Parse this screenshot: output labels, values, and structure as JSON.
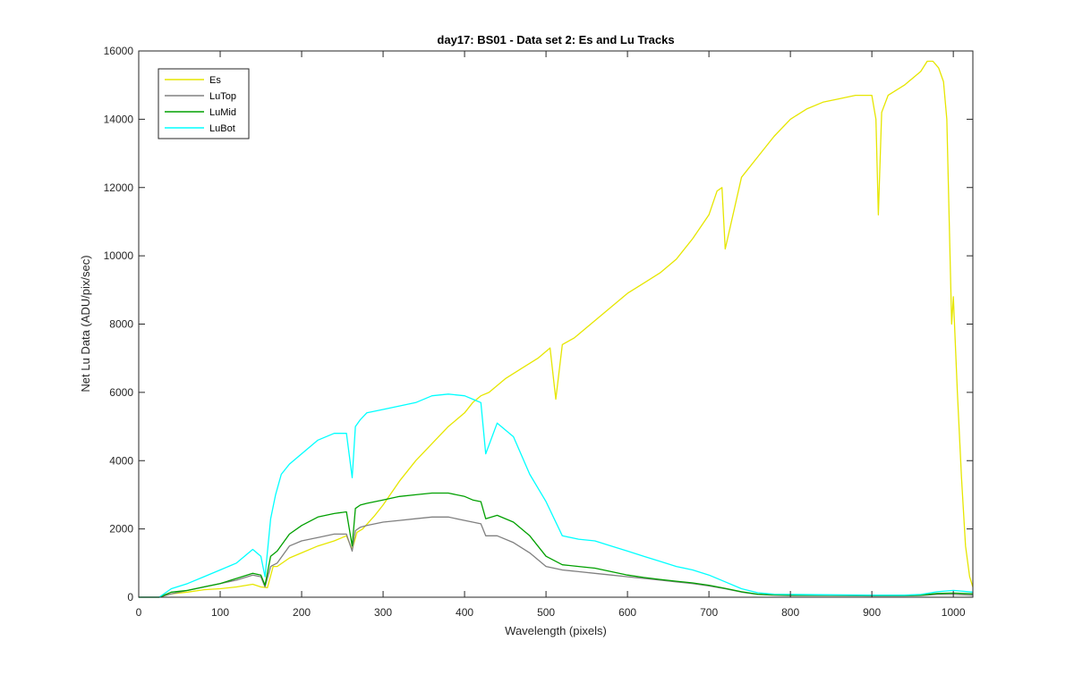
{
  "chart_data": {
    "type": "line",
    "title": "day17: BS01 - Data set 2: Es and Lu Tracks",
    "xlabel": "Wavelength (pixels)",
    "ylabel": "Net Lu Data (ADU/pix/sec)",
    "xlim": [
      0,
      1024
    ],
    "ylim": [
      0,
      16000
    ],
    "x_ticks": [
      0,
      100,
      200,
      300,
      400,
      500,
      600,
      700,
      800,
      900,
      1000
    ],
    "y_ticks": [
      0,
      2000,
      4000,
      6000,
      8000,
      10000,
      12000,
      14000,
      16000
    ],
    "grid": false,
    "legend_position": "top-left",
    "series": [
      {
        "name": "Es",
        "color": "#e6e600",
        "x": [
          0,
          25,
          40,
          60,
          80,
          100,
          120,
          140,
          150,
          158,
          165,
          170,
          185,
          200,
          220,
          240,
          255,
          262,
          268,
          275,
          290,
          300,
          320,
          340,
          360,
          380,
          400,
          410,
          420,
          430,
          450,
          470,
          490,
          505,
          512,
          520,
          535,
          550,
          570,
          590,
          600,
          620,
          640,
          660,
          680,
          700,
          710,
          716,
          720,
          740,
          760,
          780,
          800,
          820,
          840,
          860,
          880,
          900,
          905,
          908,
          912,
          920,
          940,
          960,
          968,
          975,
          982,
          988,
          992,
          995,
          998,
          1000,
          1005,
          1010,
          1015,
          1020,
          1024
        ],
        "y": [
          0,
          0,
          100,
          150,
          220,
          250,
          300,
          380,
          300,
          280,
          900,
          900,
          1150,
          1300,
          1500,
          1650,
          1800,
          1400,
          1900,
          2000,
          2400,
          2700,
          3400,
          4000,
          4500,
          5000,
          5400,
          5700,
          5900,
          6000,
          6400,
          6700,
          7000,
          7300,
          5800,
          7400,
          7600,
          7900,
          8300,
          8700,
          8900,
          9200,
          9500,
          9900,
          10500,
          11200,
          11900,
          12000,
          10200,
          12300,
          12900,
          13500,
          14000,
          14300,
          14500,
          14600,
          14700,
          14700,
          14000,
          11200,
          14200,
          14700,
          15000,
          15400,
          15700,
          15700,
          15500,
          15100,
          14000,
          11000,
          8000,
          8800,
          6000,
          3500,
          1500,
          600,
          300
        ]
      },
      {
        "name": "LuTop",
        "color": "#808080",
        "x": [
          0,
          25,
          40,
          60,
          80,
          100,
          120,
          140,
          150,
          155,
          162,
          170,
          185,
          200,
          220,
          240,
          255,
          262,
          266,
          272,
          280,
          300,
          320,
          340,
          360,
          380,
          400,
          410,
          420,
          426,
          440,
          460,
          480,
          500,
          520,
          540,
          560,
          580,
          600,
          620,
          640,
          660,
          680,
          700,
          720,
          740,
          760,
          780,
          800,
          850,
          900,
          940,
          960,
          980,
          1000,
          1024
        ],
        "y": [
          0,
          0,
          100,
          200,
          300,
          400,
          500,
          650,
          600,
          300,
          900,
          1000,
          1500,
          1650,
          1750,
          1850,
          1850,
          1350,
          1950,
          2050,
          2100,
          2200,
          2250,
          2300,
          2350,
          2350,
          2250,
          2200,
          2150,
          1800,
          1800,
          1600,
          1300,
          900,
          800,
          750,
          700,
          650,
          600,
          550,
          500,
          450,
          400,
          330,
          250,
          150,
          80,
          60,
          50,
          50,
          40,
          40,
          50,
          80,
          80,
          60
        ]
      },
      {
        "name": "LuMid",
        "color": "#00a000",
        "x": [
          0,
          25,
          40,
          60,
          80,
          100,
          120,
          140,
          150,
          155,
          162,
          170,
          185,
          200,
          220,
          240,
          255,
          262,
          266,
          272,
          280,
          300,
          320,
          340,
          360,
          380,
          400,
          410,
          420,
          426,
          440,
          460,
          480,
          500,
          520,
          540,
          560,
          580,
          600,
          620,
          640,
          660,
          680,
          700,
          720,
          740,
          760,
          780,
          800,
          850,
          900,
          940,
          960,
          980,
          1000,
          1024
        ],
        "y": [
          0,
          0,
          150,
          200,
          300,
          400,
          550,
          700,
          650,
          350,
          1200,
          1350,
          1850,
          2100,
          2350,
          2450,
          2500,
          1500,
          2600,
          2700,
          2750,
          2850,
          2950,
          3000,
          3050,
          3050,
          2950,
          2850,
          2800,
          2300,
          2400,
          2200,
          1800,
          1200,
          950,
          900,
          850,
          750,
          650,
          580,
          520,
          470,
          420,
          350,
          260,
          160,
          90,
          70,
          60,
          60,
          50,
          50,
          60,
          110,
          120,
          100
        ]
      },
      {
        "name": "LuBot",
        "color": "#00ffff",
        "x": [
          0,
          25,
          40,
          60,
          80,
          100,
          120,
          140,
          150,
          155,
          162,
          168,
          175,
          185,
          200,
          220,
          240,
          255,
          262,
          266,
          272,
          280,
          300,
          320,
          340,
          360,
          380,
          400,
          410,
          420,
          426,
          440,
          460,
          480,
          500,
          520,
          540,
          560,
          580,
          600,
          620,
          640,
          660,
          680,
          700,
          720,
          740,
          760,
          780,
          800,
          850,
          900,
          940,
          960,
          980,
          1000,
          1024
        ],
        "y": [
          0,
          0,
          250,
          400,
          600,
          800,
          1000,
          1400,
          1200,
          600,
          2300,
          3000,
          3600,
          3900,
          4200,
          4600,
          4800,
          4800,
          3500,
          5000,
          5200,
          5400,
          5500,
          5600,
          5700,
          5900,
          5950,
          5900,
          5800,
          5700,
          4200,
          5100,
          4700,
          3600,
          2800,
          1800,
          1700,
          1650,
          1500,
          1350,
          1200,
          1050,
          900,
          800,
          650,
          450,
          250,
          130,
          90,
          80,
          70,
          60,
          60,
          80,
          160,
          200,
          150
        ]
      }
    ]
  }
}
